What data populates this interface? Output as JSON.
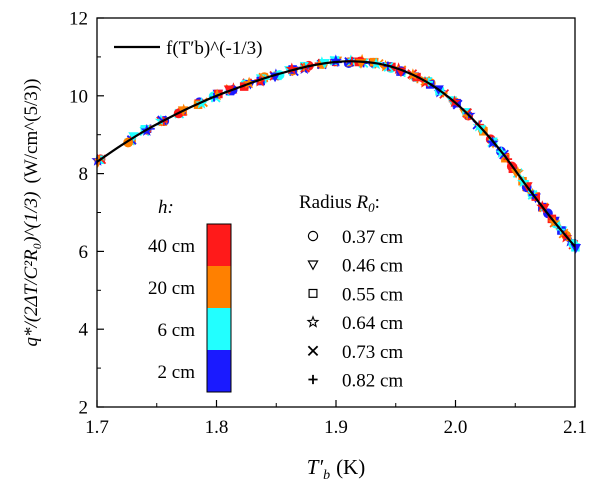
{
  "chart_data": {
    "type": "scatter",
    "title": "",
    "xlabel_var": "T′",
    "xlabel_sub": "b",
    "xlabel_unit": "(K)",
    "ylabel_text": "q*/(2ΔT/C²R₀)^(1/3)",
    "ylabel_unit": "(W/cm^(5/3))",
    "xlim": [
      1.7,
      2.1
    ],
    "ylim": [
      2,
      12
    ],
    "xticks": [
      1.7,
      1.8,
      1.9,
      2.0,
      2.1
    ],
    "xtick_labels": [
      "1.7",
      "1.8",
      "1.9",
      "2.0",
      "2.1"
    ],
    "yticks": [
      2,
      4,
      6,
      8,
      10,
      12
    ],
    "ytick_labels": [
      "2",
      "4",
      "6",
      "8",
      "10",
      "12"
    ],
    "legend": {
      "placement": "top-left",
      "line_label": "f(T′b)^(-1/3)"
    },
    "fit_curve": {
      "x": [
        1.7,
        1.72,
        1.74,
        1.76,
        1.78,
        1.8,
        1.82,
        1.84,
        1.86,
        1.88,
        1.9,
        1.92,
        1.94,
        1.96,
        1.98,
        2.0,
        2.02,
        2.04,
        2.06,
        2.08,
        2.1
      ],
      "y": [
        8.3,
        8.72,
        9.1,
        9.43,
        9.73,
        10.0,
        10.23,
        10.45,
        10.63,
        10.78,
        10.87,
        10.88,
        10.8,
        10.6,
        10.28,
        9.82,
        9.22,
        8.5,
        7.66,
        6.86,
        6.12
      ]
    },
    "color_legend": {
      "title": "h:",
      "items": [
        {
          "label": "40 cm",
          "color": "#ff1a1a"
        },
        {
          "label": "20 cm",
          "color": "#ff8000"
        },
        {
          "label": "6 cm",
          "color": "#22ffff"
        },
        {
          "label": "2 cm",
          "color": "#1a1aff"
        }
      ]
    },
    "marker_legend": {
      "title_text": "Radius ",
      "title_var": "R",
      "title_sub": "0",
      "title_colon": ":",
      "items": [
        {
          "label": "0.37 cm",
          "marker": "circle"
        },
        {
          "label": "0.46 cm",
          "marker": "triangle-down"
        },
        {
          "label": "0.55 cm",
          "marker": "square"
        },
        {
          "label": "0.64 cm",
          "marker": "star"
        },
        {
          "label": "0.73 cm",
          "marker": "x"
        },
        {
          "label": "0.82 cm",
          "marker": "plus"
        }
      ]
    },
    "points_x": [
      1.703,
      1.728,
      1.742,
      1.756,
      1.771,
      1.786,
      1.799,
      1.813,
      1.826,
      1.839,
      1.851,
      1.864,
      1.876,
      1.888,
      1.899,
      1.911,
      1.922,
      1.933,
      1.944,
      1.955,
      1.966,
      1.977,
      1.988,
      1.999,
      2.01,
      2.021,
      2.031,
      2.041,
      2.05,
      2.059,
      2.067,
      2.075,
      2.083,
      2.091,
      2.099
    ]
  }
}
